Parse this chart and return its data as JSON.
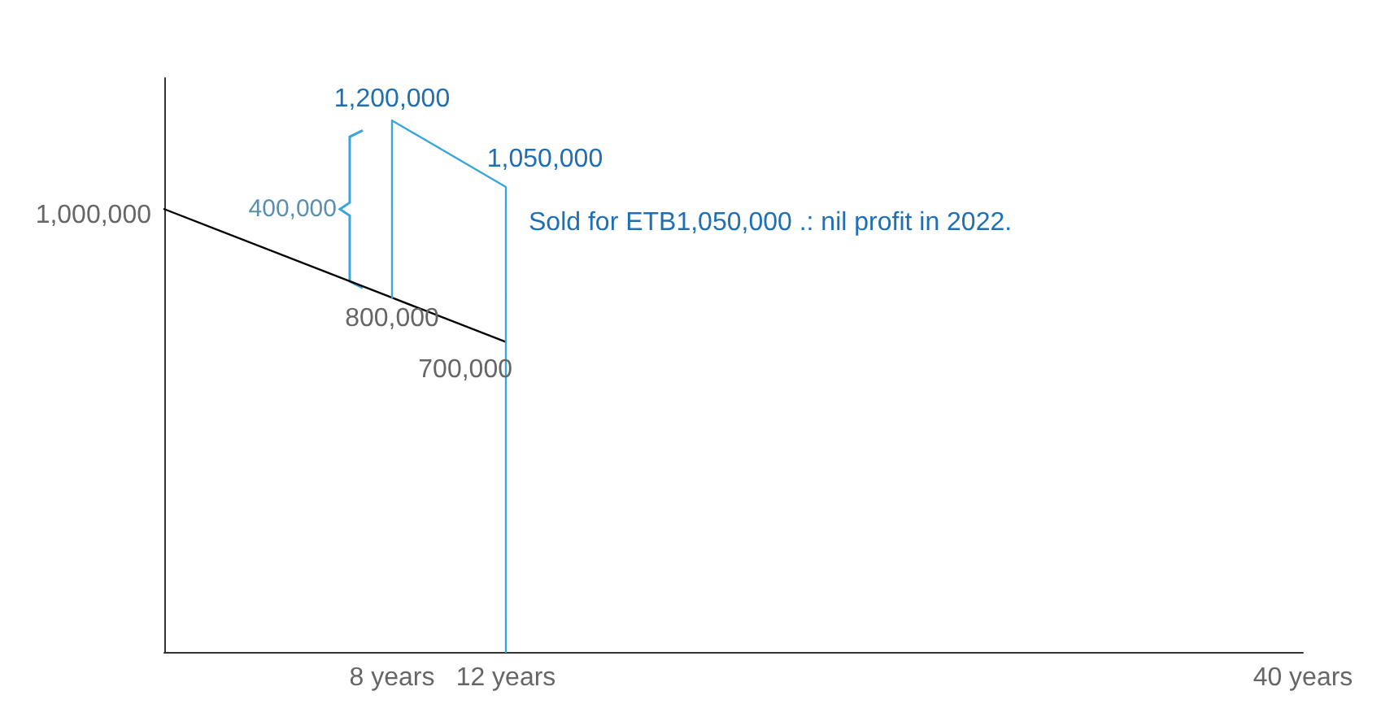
{
  "chart_data": {
    "type": "line",
    "xlim": [
      0,
      40
    ],
    "xticks": [
      {
        "value": 8,
        "label": "8 years"
      },
      {
        "value": 12,
        "label": "12 years"
      },
      {
        "value": 40,
        "label": "40 years"
      }
    ],
    "tick_labels": "x",
    "grid": false,
    "marker": "none",
    "line_style": "solid",
    "series": [
      {
        "color": "#000000",
        "x": [
          0,
          8,
          12
        ],
        "values": [
          1000000,
          800000,
          700000
        ],
        "value_labels": [
          "1,000,000",
          "800,000",
          "700,000"
        ]
      },
      {
        "color": "#3aa6d8",
        "x": [
          8,
          8,
          12,
          12
        ],
        "values": [
          800000,
          1200000,
          1050000,
          0
        ],
        "value_labels": [
          null,
          "1,200,000",
          "1,050,000",
          null
        ]
      }
    ],
    "annotations": [
      {
        "text": "400,000",
        "x": 8,
        "y": 1000000
      },
      {
        "text": "Sold for ETB1,050,000 .: nil profit in 2022.",
        "x": 12,
        "y": 1050000
      }
    ]
  }
}
